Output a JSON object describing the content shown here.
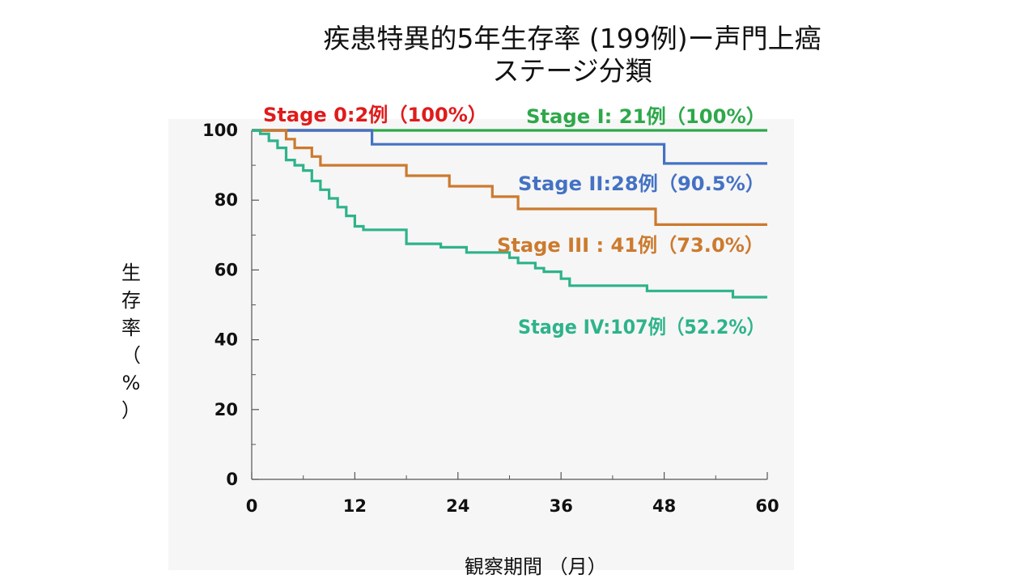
{
  "title_line1": "疾患特異的5年生存率 (199例)ー声門上癌",
  "title_line2": "ステージ分類",
  "ylabel_chars": [
    "生",
    "存",
    "率",
    "（",
    "%",
    "）"
  ],
  "xlabel": "観察期間 （月）",
  "chart_data": {
    "type": "line",
    "step": true,
    "title": "疾患特異的5年生存率 (199例)ー声門上癌 ステージ分類",
    "xlabel": "観察期間 （月）",
    "ylabel": "生存率（%）",
    "xlim": [
      0,
      60
    ],
    "ylim": [
      0,
      100
    ],
    "x_ticks": [
      0,
      12,
      24,
      36,
      48,
      60
    ],
    "y_ticks": [
      0,
      20,
      40,
      60,
      80,
      100
    ],
    "x_minor_ticks": [
      6,
      18,
      30,
      42,
      54
    ],
    "y_minor_ticks": [
      10,
      30,
      50,
      70,
      90
    ],
    "grid": false,
    "series": [
      {
        "name": "Stage I: 21例（100%）",
        "color": "#2ea84a",
        "points": [
          [
            0,
            100
          ],
          [
            60,
            100
          ]
        ]
      },
      {
        "name": "Stage 0:2例（100%）",
        "color": "#e01b1b",
        "points": [
          [
            0,
            100
          ],
          [
            14,
            100
          ]
        ]
      },
      {
        "name": "Stage II:28例（90.5%）",
        "color": "#4472c4",
        "points": [
          [
            0,
            100
          ],
          [
            14,
            100
          ],
          [
            14,
            96
          ],
          [
            48,
            96
          ],
          [
            48,
            90.5
          ],
          [
            60,
            90.5
          ]
        ]
      },
      {
        "name": "Stage III : 41例（73.0%）",
        "color": "#cc7a2e",
        "points": [
          [
            0,
            100
          ],
          [
            4,
            100
          ],
          [
            4,
            97.5
          ],
          [
            5,
            97.5
          ],
          [
            5,
            95
          ],
          [
            7,
            95
          ],
          [
            7,
            92.5
          ],
          [
            8,
            92.5
          ],
          [
            8,
            90
          ],
          [
            18,
            90
          ],
          [
            18,
            87
          ],
          [
            23,
            87
          ],
          [
            23,
            84
          ],
          [
            28,
            84
          ],
          [
            28,
            81
          ],
          [
            31,
            81
          ],
          [
            31,
            77.5
          ],
          [
            47,
            77.5
          ],
          [
            47,
            73
          ],
          [
            60,
            73
          ]
        ]
      },
      {
        "name": "Stage IV:107例（52.2%）",
        "color": "#2eb38a",
        "points": [
          [
            0,
            100
          ],
          [
            1,
            100
          ],
          [
            1,
            99
          ],
          [
            2,
            99
          ],
          [
            2,
            97
          ],
          [
            3,
            97
          ],
          [
            3,
            95
          ],
          [
            4,
            95
          ],
          [
            4,
            91.5
          ],
          [
            5,
            91.5
          ],
          [
            5,
            90
          ],
          [
            6,
            90
          ],
          [
            6,
            88.5
          ],
          [
            7,
            88.5
          ],
          [
            7,
            85.5
          ],
          [
            8,
            85.5
          ],
          [
            8,
            83
          ],
          [
            9,
            83
          ],
          [
            9,
            80.5
          ],
          [
            10,
            80.5
          ],
          [
            10,
            78
          ],
          [
            11,
            78
          ],
          [
            11,
            75.5
          ],
          [
            12,
            75.5
          ],
          [
            12,
            72.5
          ],
          [
            13,
            72.5
          ],
          [
            13,
            71.5
          ],
          [
            18,
            71.5
          ],
          [
            18,
            67.5
          ],
          [
            22,
            67.5
          ],
          [
            22,
            66.5
          ],
          [
            25,
            66.5
          ],
          [
            25,
            65
          ],
          [
            30,
            65
          ],
          [
            30,
            63.5
          ],
          [
            31,
            63.5
          ],
          [
            31,
            62
          ],
          [
            33,
            62
          ],
          [
            33,
            60.5
          ],
          [
            34,
            60.5
          ],
          [
            34,
            59.5
          ],
          [
            36,
            59.5
          ],
          [
            36,
            57.5
          ],
          [
            37,
            57.5
          ],
          [
            37,
            55.5
          ],
          [
            46,
            55.5
          ],
          [
            46,
            54
          ],
          [
            56,
            54
          ],
          [
            56,
            52.2
          ],
          [
            60,
            52.2
          ]
        ]
      }
    ]
  }
}
